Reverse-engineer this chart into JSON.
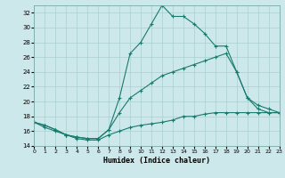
{
  "xlabel": "Humidex (Indice chaleur)",
  "bg_color": "#cce8ea",
  "line_color": "#1a7a6e",
  "grid_color": "#aacfcf",
  "xlim": [
    0,
    23
  ],
  "ylim": [
    14,
    33
  ],
  "xticks": [
    0,
    1,
    2,
    3,
    4,
    5,
    6,
    7,
    8,
    9,
    10,
    11,
    12,
    13,
    14,
    15,
    16,
    17,
    18,
    19,
    20,
    21,
    22,
    23
  ],
  "yticks": [
    14,
    16,
    18,
    20,
    22,
    24,
    26,
    28,
    30,
    32
  ],
  "curve_max": {
    "x": [
      0,
      1,
      2,
      3,
      4,
      5,
      6,
      7,
      8,
      9,
      10,
      11,
      12,
      13,
      14,
      15,
      16,
      17,
      18,
      19,
      20,
      21,
      22,
      23
    ],
    "y": [
      17.2,
      16.8,
      16.2,
      15.5,
      15.2,
      15.0,
      15.0,
      16.2,
      20.5,
      26.5,
      28.0,
      30.5,
      33.0,
      31.5,
      31.5,
      30.5,
      29.2,
      27.5,
      27.5,
      24.0,
      20.5,
      19.0,
      18.5,
      18.5
    ]
  },
  "curve_mean": {
    "x": [
      0,
      1,
      2,
      3,
      4,
      5,
      6,
      7,
      8,
      9,
      10,
      11,
      12,
      13,
      14,
      15,
      16,
      17,
      18,
      19,
      20,
      21,
      22,
      23
    ],
    "y": [
      17.2,
      16.8,
      16.2,
      15.5,
      15.2,
      15.0,
      15.0,
      16.2,
      18.5,
      20.5,
      21.5,
      22.5,
      23.5,
      24.0,
      24.5,
      25.0,
      25.5,
      26.0,
      26.5,
      24.0,
      20.5,
      19.5,
      19.0,
      18.5
    ]
  },
  "curve_min": {
    "x": [
      0,
      1,
      2,
      3,
      4,
      5,
      6,
      7,
      8,
      9,
      10,
      11,
      12,
      13,
      14,
      15,
      16,
      17,
      18,
      19,
      20,
      21,
      22,
      23
    ],
    "y": [
      17.2,
      16.5,
      16.0,
      15.5,
      15.0,
      14.8,
      14.8,
      15.5,
      16.0,
      16.5,
      16.8,
      17.0,
      17.2,
      17.5,
      18.0,
      18.0,
      18.3,
      18.5,
      18.5,
      18.5,
      18.5,
      18.5,
      18.5,
      18.5
    ]
  }
}
